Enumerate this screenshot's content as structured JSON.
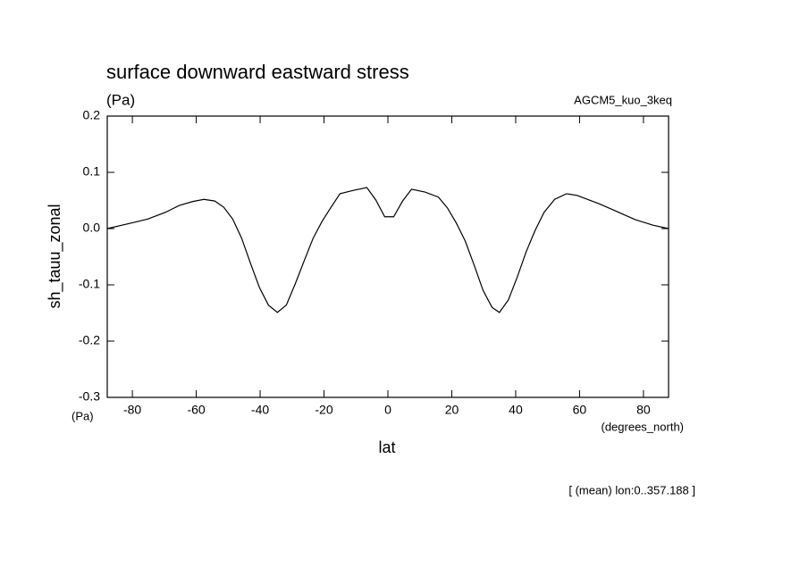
{
  "chart_data": {
    "type": "line",
    "title": "surface downward eastward stress",
    "units": "(Pa)",
    "dataset": "AGCM5_kuo_3keq",
    "y_label": "sh_tauu_zonal",
    "y_units": "(Pa)",
    "x_label": "lat",
    "x_units": "(degrees_north)",
    "note": "[ (mean) lon:0..357.188 ]",
    "x": [
      -87.9,
      -79.5,
      -75.2,
      -69.6,
      -65.4,
      -61.2,
      -57.6,
      -54.2,
      -51.4,
      -48.6,
      -45.8,
      -43.0,
      -40.2,
      -37.4,
      -34.6,
      -31.8,
      -29.0,
      -26.2,
      -23.4,
      -20.6,
      -17.8,
      -15.0,
      -10.8,
      -6.6,
      -3.8,
      -1.0,
      1.8,
      4.6,
      7.4,
      11.6,
      15.8,
      18.6,
      21.4,
      24.2,
      27.0,
      29.8,
      32.6,
      34.9,
      37.7,
      40.5,
      43.3,
      46.1,
      48.9,
      52.2,
      55.9,
      59.2,
      66.2,
      71.8,
      77.4,
      83.0,
      87.9
    ],
    "series": [
      {
        "name": "sh_tauu_zonal",
        "color": "#000000",
        "values": [
          0.0,
          0.011,
          0.017,
          0.029,
          0.041,
          0.048,
          0.052,
          0.049,
          0.038,
          0.017,
          -0.017,
          -0.062,
          -0.105,
          -0.136,
          -0.149,
          -0.136,
          -0.098,
          -0.057,
          -0.017,
          0.013,
          0.038,
          0.062,
          0.068,
          0.073,
          0.051,
          0.021,
          0.021,
          0.049,
          0.07,
          0.065,
          0.056,
          0.037,
          0.01,
          -0.022,
          -0.065,
          -0.11,
          -0.14,
          -0.149,
          -0.127,
          -0.086,
          -0.041,
          -0.003,
          0.029,
          0.052,
          0.062,
          0.059,
          0.044,
          0.03,
          0.016,
          0.006,
          0.0
        ]
      }
    ],
    "xlim": [
      -87.86,
      87.86
    ],
    "ylim": [
      -0.3,
      0.2
    ],
    "xticks": [
      -80,
      -60,
      -40,
      -20,
      0,
      20,
      40,
      60,
      80
    ],
    "yticks": [
      -0.3,
      -0.2,
      -0.1,
      {
        "value": 0,
        "label": "0.0"
      },
      0.1,
      0.2
    ]
  }
}
